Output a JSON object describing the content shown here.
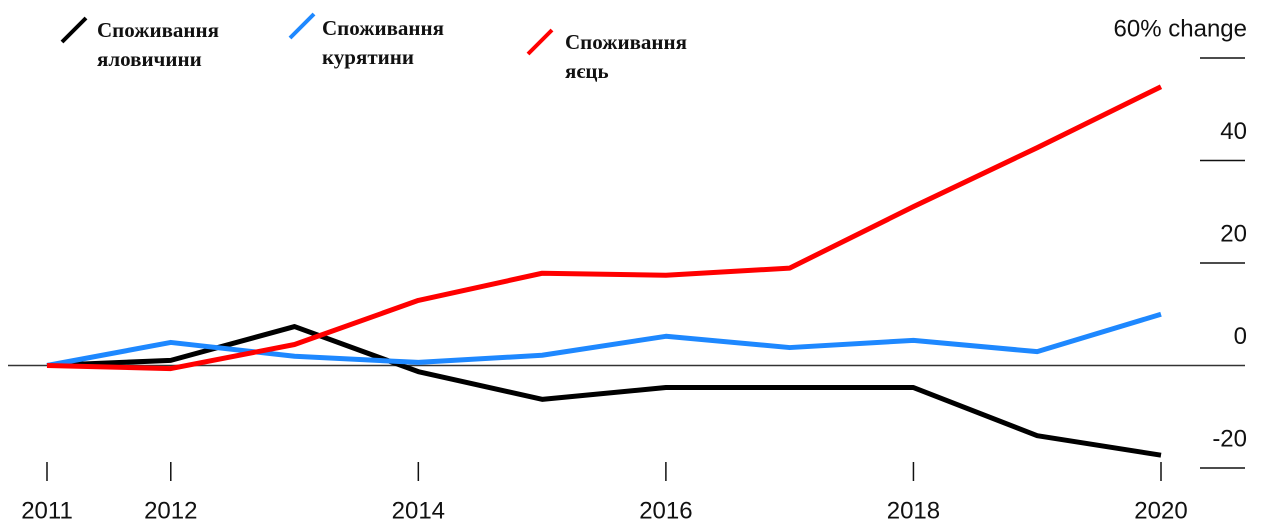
{
  "chart_data": {
    "type": "line",
    "x": [
      2011,
      2012,
      2013,
      2014,
      2015,
      2016,
      2017,
      2018,
      2019,
      2020
    ],
    "xlim": [
      2011,
      2020
    ],
    "xticks": [
      2011,
      2012,
      2014,
      2016,
      2018,
      2020
    ],
    "ylim": [
      -20,
      60
    ],
    "yticks": [
      -20,
      0,
      20,
      40,
      {
        "value": 60,
        "label": "60% change"
      }
    ],
    "series": [
      {
        "name": "Споживання яловичини",
        "color": "#000000",
        "values": [
          0,
          1,
          7.6,
          -1.2,
          -6.6,
          -4.3,
          -4.3,
          -4.3,
          -13.7,
          -17.5
        ]
      },
      {
        "name": "Споживання курятини",
        "color": "#1e88ff",
        "values": [
          0,
          4.5,
          1.8,
          0.6,
          2,
          5.7,
          3.5,
          4.9,
          2.7,
          10
        ]
      },
      {
        "name": "Споживання яєць",
        "color": "#ff0000",
        "values": [
          0,
          -0.6,
          4.1,
          12.7,
          18,
          17.6,
          19,
          31,
          42.5,
          54.4
        ]
      }
    ]
  }
}
